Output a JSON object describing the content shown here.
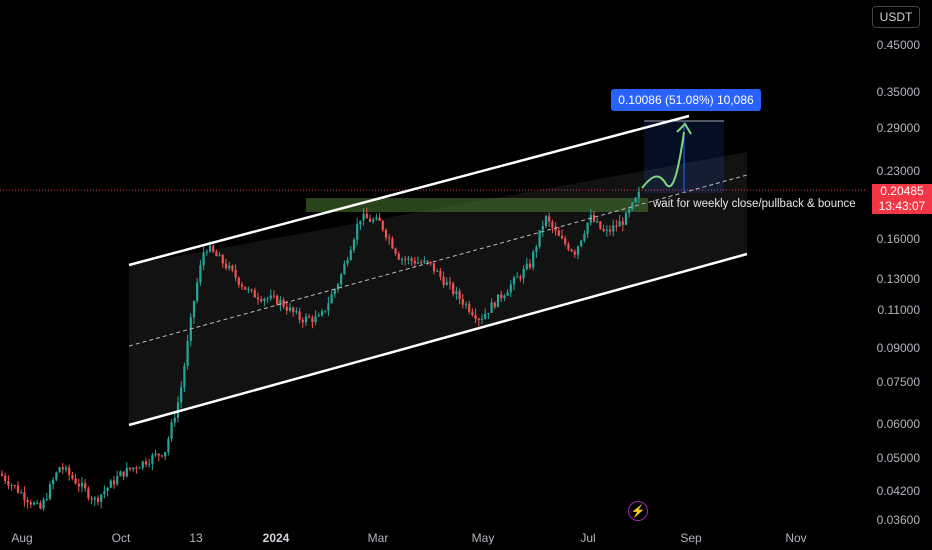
{
  "chart_data": {
    "type": "candlestick",
    "symbol_quote": "USDT",
    "y_scale": "log",
    "y_ticks": [
      "0.45000",
      "0.35000",
      "0.29000",
      "0.23000",
      "0.16000",
      "0.13000",
      "0.11000",
      "0.09000",
      "0.07500",
      "0.06000",
      "0.05000",
      "0.04200",
      "0.03600"
    ],
    "y_tick_values": [
      0.45,
      0.35,
      0.29,
      0.23,
      0.16,
      0.13,
      0.11,
      0.09,
      0.075,
      0.06,
      0.05,
      0.042,
      0.036
    ],
    "x_ticks": [
      "Aug",
      "Oct",
      "13",
      "2024",
      "Mar",
      "May",
      "Jul",
      "Sep",
      "Nov"
    ],
    "x_bold": "2024",
    "last_price": "0.20485",
    "countdown": "13:43:07",
    "measure_label": "0.10086 (51.08%) 10,086",
    "annotation": "wait for weekly close/pullback & bounce",
    "series_key_points": [
      {
        "x": "Aug",
        "y": 0.046
      },
      {
        "x": "Oct",
        "y": 0.042
      },
      {
        "x": "Oct (late)",
        "y": 0.05
      },
      {
        "x": "13",
        "y": 0.155
      },
      {
        "x": "Dec",
        "y": 0.115
      },
      {
        "x": "Mar",
        "y": 0.185
      },
      {
        "x": "Apr",
        "y": 0.135
      },
      {
        "x": "May",
        "y": 0.108
      },
      {
        "x": "Jun",
        "y": 0.19
      },
      {
        "x": "Jul",
        "y": 0.175
      },
      {
        "x": "Aug",
        "y": 0.205
      }
    ],
    "colors": {
      "up": "#26a69a",
      "down": "#ef5350",
      "channel": "#ffffff",
      "zone": "#3c5a2a",
      "target_arrow": "#7ed87e",
      "last_price": "#f23645",
      "measure": "#2962ff"
    }
  },
  "ui": {
    "currency": "USDT",
    "bolt_icon": "bolt-icon"
  }
}
